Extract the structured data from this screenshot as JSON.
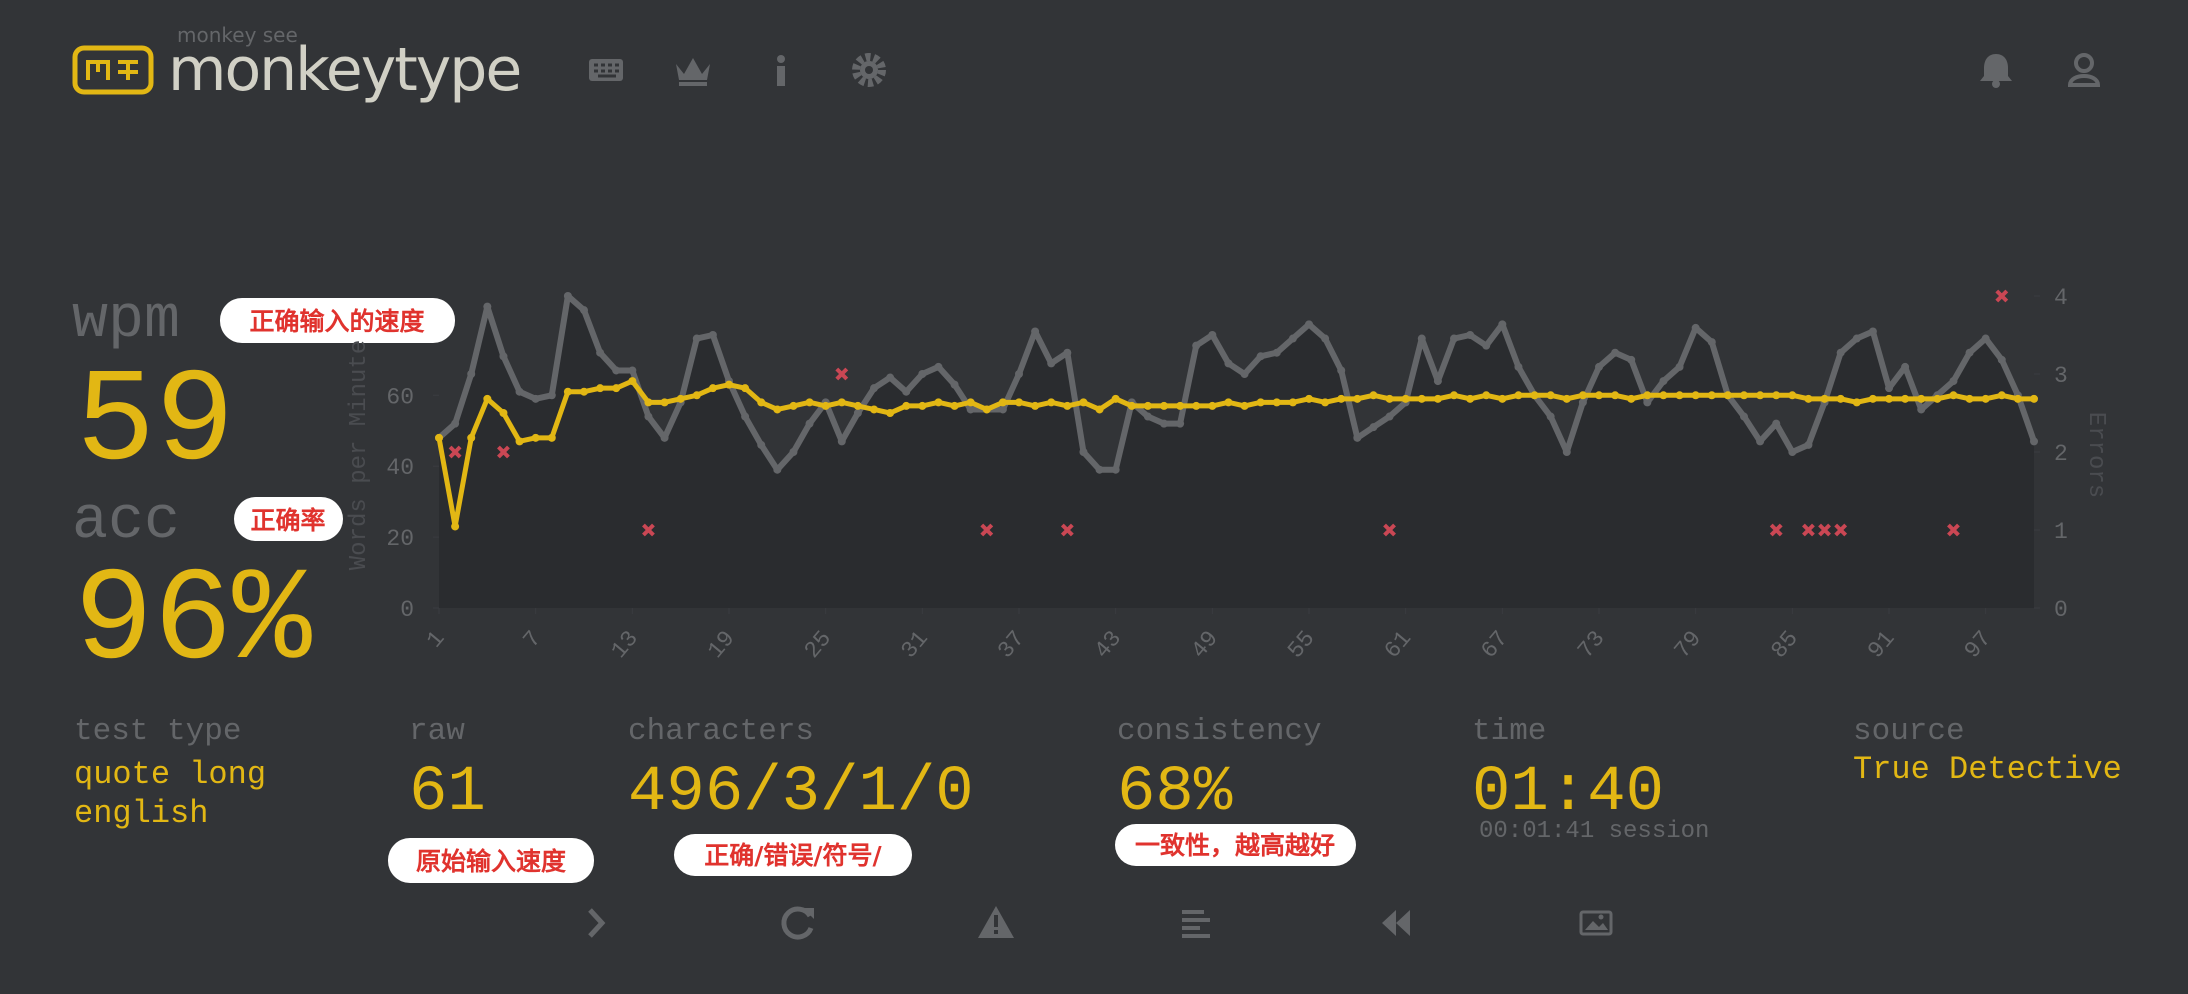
{
  "header": {
    "logo_sub": "monkey see",
    "logo": "monkeytype"
  },
  "stats": {
    "wpm": {
      "label": "wpm",
      "value": "59"
    },
    "acc": {
      "label": "acc",
      "value": "96%"
    },
    "test_type": {
      "label": "test type",
      "lines": [
        "quote long",
        "english"
      ]
    },
    "raw": {
      "label": "raw",
      "value": "61"
    },
    "characters": {
      "label": "characters",
      "value": "496/3/1/0"
    },
    "consistency": {
      "label": "consistency",
      "value": "68%"
    },
    "time": {
      "label": "time",
      "value": "01:40",
      "session": "00:01:41 session"
    },
    "source": {
      "label": "source",
      "value": "True Detective"
    }
  },
  "annotations": [
    "正确输入的速度",
    "正确率",
    "原始输入速度",
    "正确/错误/符号/",
    "一致性，越高越好"
  ],
  "chart_data": {
    "type": "line",
    "ylabel": "Words per Minute",
    "y2label": "Errors",
    "x": [
      1,
      2,
      3,
      4,
      5,
      6,
      7,
      8,
      9,
      10,
      11,
      12,
      13,
      14,
      15,
      16,
      17,
      18,
      19,
      20,
      21,
      22,
      23,
      24,
      25,
      26,
      27,
      28,
      29,
      30,
      31,
      32,
      33,
      34,
      35,
      36,
      37,
      38,
      39,
      40,
      41,
      42,
      43,
      44,
      45,
      46,
      47,
      48,
      49,
      50,
      51,
      52,
      53,
      54,
      55,
      56,
      57,
      58,
      59,
      60,
      61,
      62,
      63,
      64,
      65,
      66,
      67,
      68,
      69,
      70,
      71,
      72,
      73,
      74,
      75,
      76,
      77,
      78,
      79,
      80,
      81,
      82,
      83,
      84,
      85,
      86,
      87,
      88,
      89,
      90,
      91,
      92,
      93,
      94,
      95,
      96,
      97,
      98,
      99,
      100
    ],
    "series": [
      {
        "color": "#646669",
        "values": [
          48,
          52,
          66,
          85,
          71,
          61,
          59,
          60,
          88,
          84,
          72,
          67,
          67,
          54,
          48,
          58,
          76,
          77,
          64,
          54,
          46,
          39,
          44,
          52,
          58,
          47,
          55,
          62,
          65,
          61,
          66,
          68,
          63,
          56,
          56,
          56,
          66,
          78,
          69,
          72,
          44,
          39,
          39,
          58,
          54,
          52,
          52,
          74,
          77,
          69,
          66,
          71,
          72,
          76,
          80,
          76,
          67,
          48,
          51,
          54,
          58,
          76,
          64,
          76,
          77,
          74,
          80,
          68,
          60,
          54,
          44,
          58,
          68,
          72,
          70,
          58,
          64,
          68,
          79,
          75,
          60,
          54,
          47,
          52,
          44,
          46,
          58,
          72,
          76,
          78,
          62,
          68,
          56,
          60,
          64,
          72,
          76,
          70,
          60,
          47
        ]
      },
      {
        "color": "#e2b714",
        "values": [
          48,
          23,
          48,
          59,
          55,
          47,
          48,
          48,
          61,
          61,
          62,
          62,
          64,
          58,
          58,
          59,
          60,
          62,
          63,
          62,
          58,
          56,
          57,
          58,
          57,
          58,
          57,
          56,
          55,
          57,
          57,
          58,
          57,
          58,
          56,
          58,
          58,
          57,
          58,
          57,
          58,
          56,
          59,
          57,
          57,
          57,
          57,
          57,
          57,
          58,
          57,
          58,
          58,
          58,
          59,
          58,
          59,
          59,
          60,
          59,
          59,
          59,
          59,
          60,
          59,
          60,
          59,
          60,
          60,
          60,
          59,
          60,
          60,
          60,
          59,
          60,
          60,
          60,
          60,
          60,
          60,
          60,
          60,
          60,
          60,
          59,
          59,
          59,
          58,
          59,
          59,
          59,
          59,
          59,
          60,
          59,
          59,
          60,
          59,
          59
        ]
      },
      {
        "type": "scatter",
        "axis": "y2",
        "color": "#ca4754",
        "x": [
          2,
          5,
          14,
          26,
          35,
          40,
          60,
          84,
          86,
          87,
          88,
          95,
          98
        ],
        "values": [
          2,
          2,
          1,
          3,
          1,
          1,
          1,
          1,
          1,
          1,
          1,
          1,
          4
        ]
      }
    ],
    "xlim": [
      1,
      100
    ],
    "xticks": [
      1,
      7,
      13,
      19,
      25,
      31,
      37,
      43,
      49,
      55,
      61,
      67,
      73,
      79,
      85,
      91,
      97
    ],
    "ylim": [
      0,
      88
    ],
    "yticks": [
      0,
      20,
      40,
      60
    ],
    "y2lim": [
      0,
      4
    ],
    "y2ticks": [
      0,
      1,
      2,
      3,
      4
    ]
  }
}
